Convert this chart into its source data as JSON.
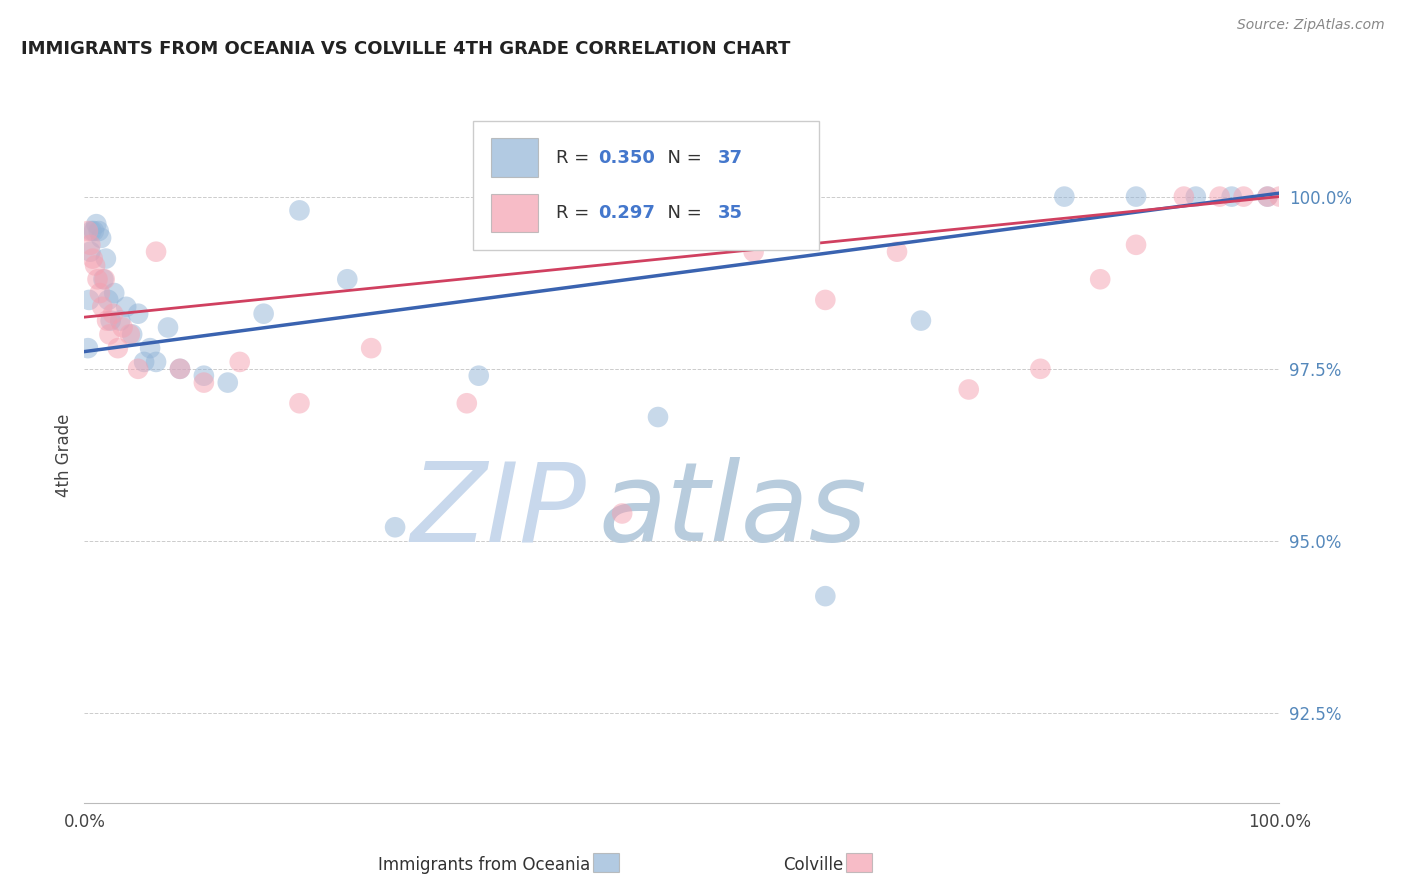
{
  "title": "IMMIGRANTS FROM OCEANIA VS COLVILLE 4TH GRADE CORRELATION CHART",
  "source_text": "Source: ZipAtlas.com",
  "ylabel": "4th Grade",
  "legend_blue_label": "Immigrants from Oceania",
  "legend_pink_label": "Colville",
  "blue_R": 0.35,
  "blue_N": 37,
  "pink_R": 0.297,
  "pink_N": 35,
  "blue_color": "#92B4D7",
  "pink_color": "#F4A0B0",
  "blue_line_color": "#3A63B0",
  "pink_line_color": "#D04060",
  "y_tick_labels": [
    "92.5%",
    "95.0%",
    "97.5%",
    "100.0%"
  ],
  "y_tick_values": [
    92.5,
    95.0,
    97.5,
    100.0
  ],
  "xlim": [
    0.0,
    100.0
  ],
  "ylim": [
    91.2,
    101.3
  ],
  "blue_points_x": [
    0.3,
    0.4,
    0.5,
    0.6,
    0.8,
    1.0,
    1.2,
    1.4,
    1.6,
    1.8,
    2.0,
    2.2,
    2.5,
    3.0,
    3.5,
    4.0,
    4.5,
    5.0,
    5.5,
    6.0,
    7.0,
    8.0,
    10.0,
    12.0,
    15.0,
    18.0,
    22.0,
    26.0,
    33.0,
    48.0,
    62.0,
    70.0,
    82.0,
    88.0,
    93.0,
    96.0,
    99.0
  ],
  "blue_points_y": [
    97.8,
    98.5,
    99.2,
    99.5,
    99.5,
    99.6,
    99.5,
    99.4,
    98.8,
    99.1,
    98.5,
    98.2,
    98.6,
    98.2,
    98.4,
    98.0,
    98.3,
    97.6,
    97.8,
    97.6,
    98.1,
    97.5,
    97.4,
    97.3,
    98.3,
    99.8,
    98.8,
    95.2,
    97.4,
    96.8,
    94.2,
    98.2,
    100.0,
    100.0,
    100.0,
    100.0,
    100.0
  ],
  "pink_points_x": [
    0.3,
    0.5,
    0.7,
    0.9,
    1.1,
    1.3,
    1.5,
    1.7,
    1.9,
    2.1,
    2.4,
    2.8,
    3.2,
    3.8,
    4.5,
    6.0,
    8.0,
    10.0,
    13.0,
    18.0,
    24.0,
    32.0,
    45.0,
    56.0,
    62.0,
    68.0,
    74.0,
    80.0,
    85.0,
    88.0,
    92.0,
    95.0,
    97.0,
    99.0,
    100.0
  ],
  "pink_points_y": [
    99.5,
    99.3,
    99.1,
    99.0,
    98.8,
    98.6,
    98.4,
    98.8,
    98.2,
    98.0,
    98.3,
    97.8,
    98.1,
    98.0,
    97.5,
    99.2,
    97.5,
    97.3,
    97.6,
    97.0,
    97.8,
    97.0,
    95.4,
    99.2,
    98.5,
    99.2,
    97.2,
    97.5,
    98.8,
    99.3,
    100.0,
    100.0,
    100.0,
    100.0,
    100.0
  ],
  "watermark_zip": "ZIP",
  "watermark_atlas": "atlas",
  "watermark_color_zip": "#C8D8EC",
  "watermark_color_atlas": "#B8CCDD",
  "background_color": "#FFFFFF",
  "grid_color": "#CCCCCC",
  "blue_trend_x0": 0.0,
  "blue_trend_y0": 97.75,
  "blue_trend_x1": 100.0,
  "blue_trend_y1": 100.05,
  "pink_trend_x0": 0.0,
  "pink_trend_y0": 98.25,
  "pink_trend_x1": 100.0,
  "pink_trend_y1": 100.0
}
